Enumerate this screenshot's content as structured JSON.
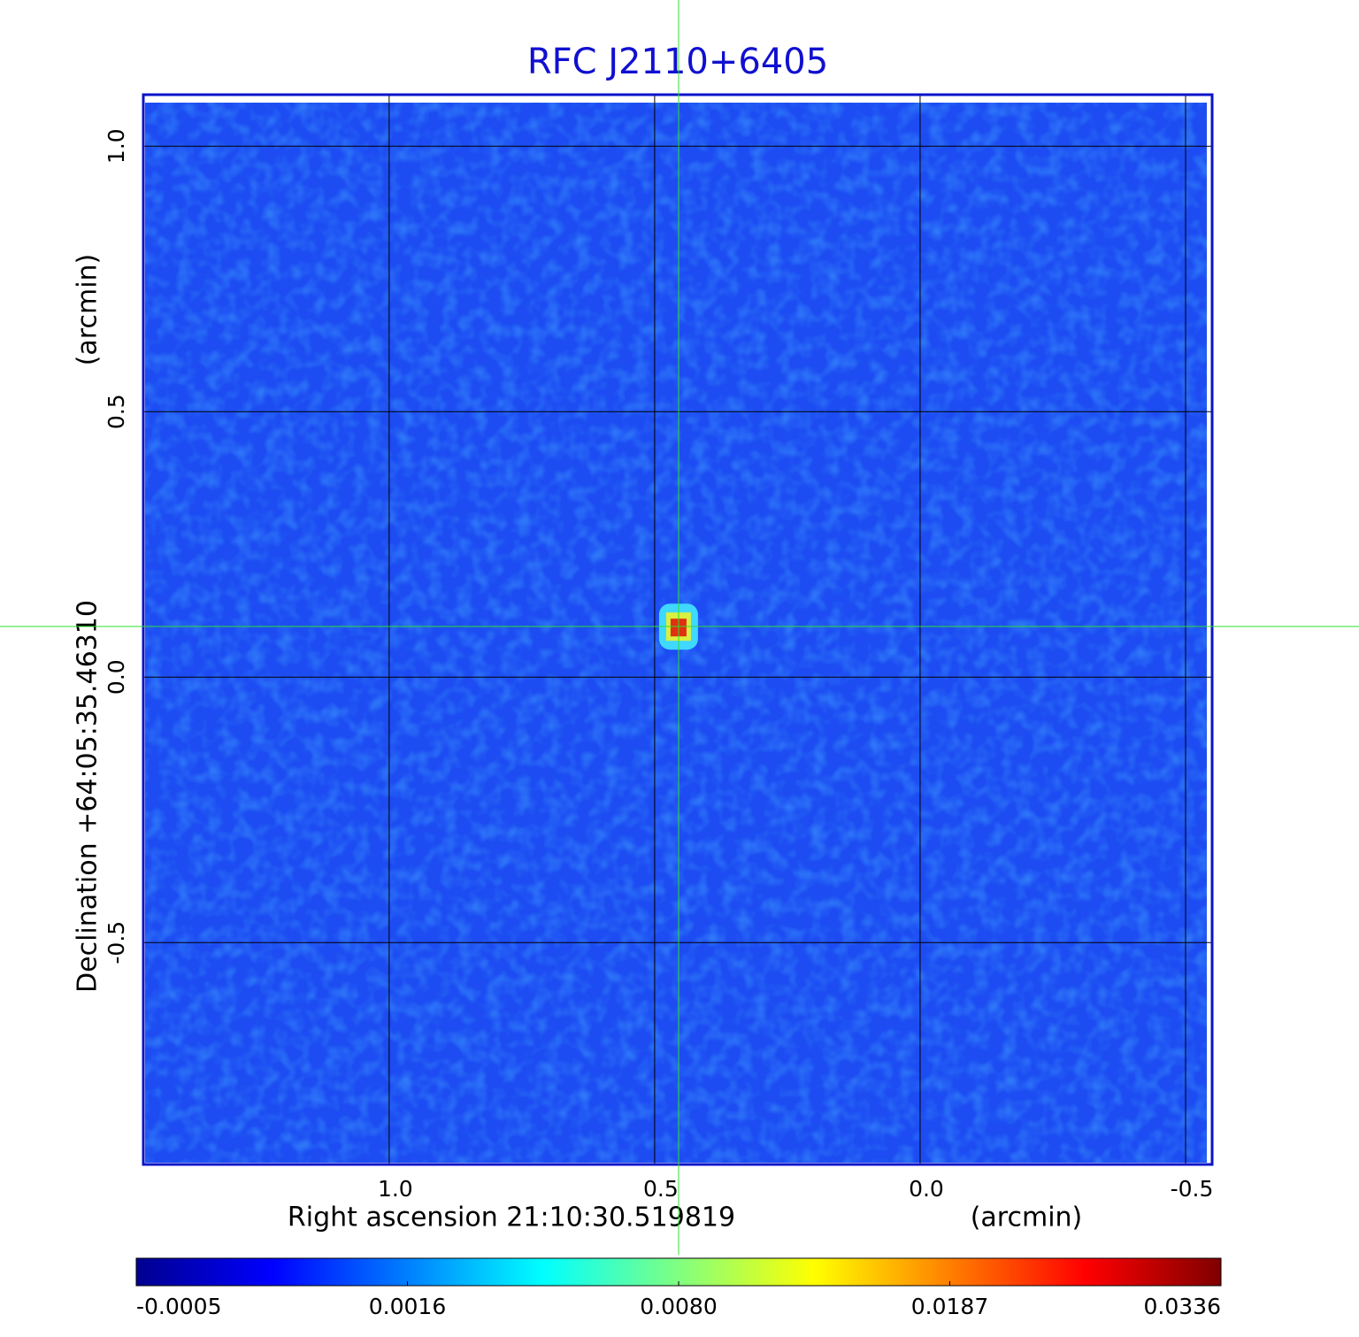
{
  "chart_data": {
    "type": "image",
    "title": "RFC J2110+6405",
    "xlabel": "Right ascension  21:10:30.519819",
    "xunit": "(arcmin)",
    "ylabel": "Declination  +64:05:35.46310",
    "yunit": "(arcmin)",
    "xlim": [
      1.463,
      -0.55
    ],
    "ylim": [
      -0.918,
      1.097
    ],
    "xticks": [
      {
        "value": 1.0,
        "label": "1.0"
      },
      0.5,
      {
        "value": 0.0,
        "label": "0.0"
      },
      -0.5
    ],
    "yticks": [
      -0.5,
      {
        "value": 0.0,
        "label": "0.0"
      },
      0.5,
      {
        "value": 1.0,
        "label": "1.0"
      }
    ],
    "grid": true,
    "source": {
      "x": 0.455,
      "y": 0.095,
      "value": 0.0336
    },
    "colorbar_ticks": [
      -0.0005,
      0.0016,
      {
        "value": 0.008,
        "label": "0.0080"
      },
      0.0187,
      0.0336
    ]
  }
}
